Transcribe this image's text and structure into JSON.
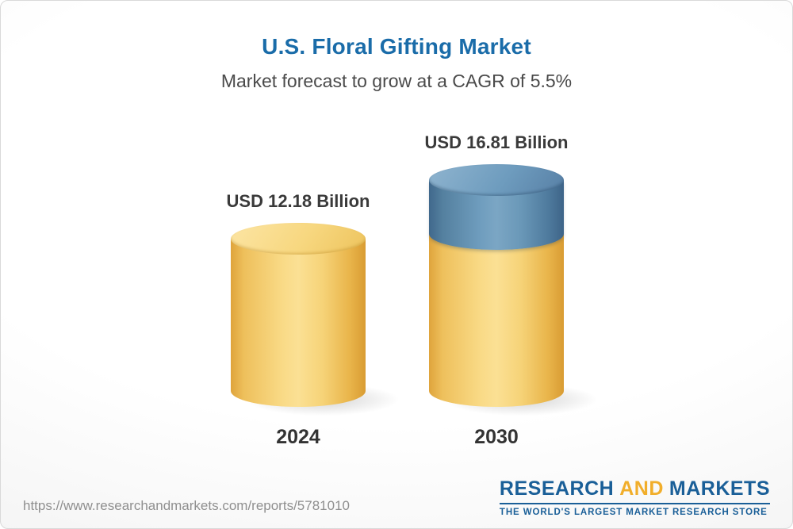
{
  "chart_data": {
    "type": "bar",
    "style": "3d-cylinder",
    "title": "U.S. Floral Gifting Market",
    "subtitle": "Market forecast to grow at a CAGR of 5.5%",
    "cagr_percent": 5.5,
    "unit": "USD Billion",
    "categories": [
      "2024",
      "2030"
    ],
    "values": [
      12.18,
      16.81
    ],
    "bars": [
      {
        "category": "2024",
        "value": 12.18,
        "label": "USD 12.18 Billion",
        "segments": [
          {
            "name": "base",
            "color": "#F2C95F"
          }
        ]
      },
      {
        "category": "2030",
        "value": 16.81,
        "label": "USD 16.81 Billion",
        "segments": [
          {
            "name": "base",
            "color": "#F2C95F"
          },
          {
            "name": "growth",
            "color": "#5E8CB0"
          }
        ]
      }
    ],
    "colors": {
      "base_yellow": "#F2C95F",
      "growth_blue": "#5E8CB0",
      "title_blue": "#1A6CA9"
    },
    "legend_position": "none",
    "grid": false
  },
  "footer": {
    "url": "https://www.researchandmarkets.com/reports/5781010",
    "logo": {
      "word1": "RESEARCH",
      "word2": "AND",
      "word3": "MARKETS",
      "tagline": "THE WORLD'S LARGEST MARKET RESEARCH STORE"
    }
  }
}
